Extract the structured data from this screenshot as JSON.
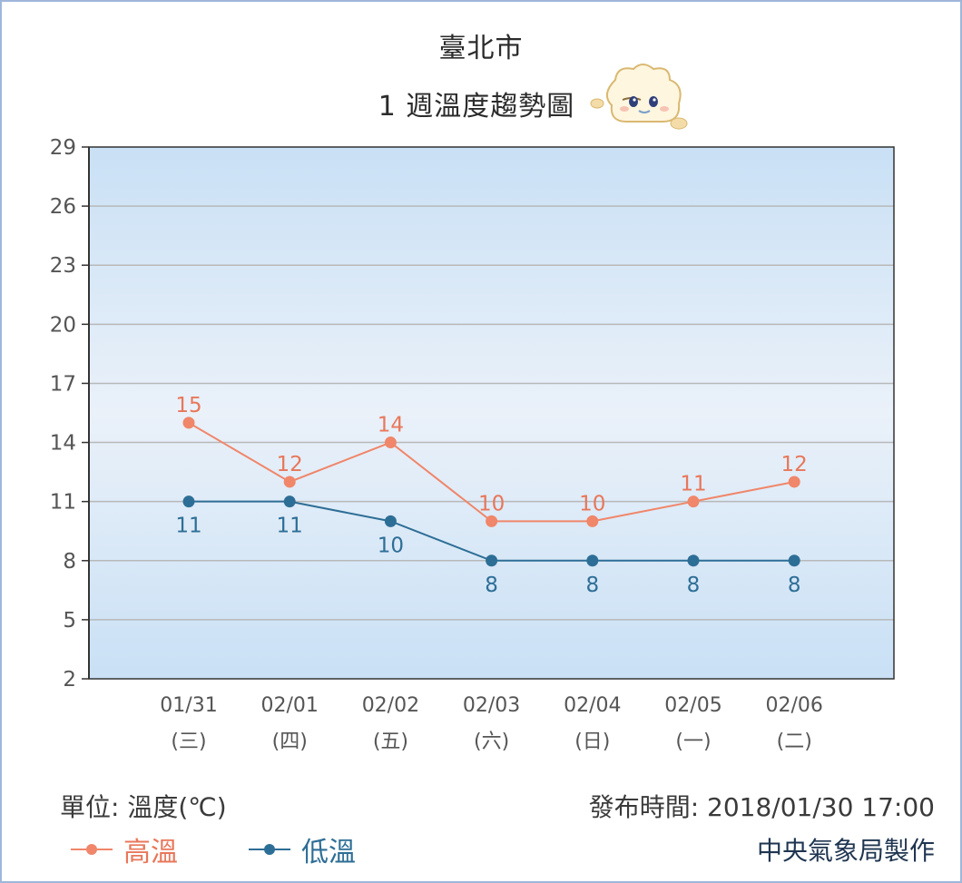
{
  "title": "臺北市",
  "subtitle": "1 週溫度趨勢圖",
  "mascot_icon": "cloud-mascot-icon",
  "unit_text": "單位: 溫度(℃)",
  "issued_text": "發布時間: 2018/01/30 17:00",
  "maker_text": "中央氣象局製作",
  "colors": {
    "high": "#f0866a",
    "low": "#2d6e96",
    "plot_top": "#c9e0f5",
    "plot_mid": "#eaf1f9",
    "grid": "#b8b8b8"
  },
  "chart_data": {
    "type": "line",
    "x": [
      "01/31",
      "02/01",
      "02/02",
      "02/03",
      "02/04",
      "02/05",
      "02/06"
    ],
    "x_sub": [
      "(三)",
      "(四)",
      "(五)",
      "(六)",
      "(日)",
      "(一)",
      "(二)"
    ],
    "series": [
      {
        "name": "高溫",
        "values": [
          15,
          12,
          14,
          10,
          10,
          11,
          12
        ]
      },
      {
        "name": "低溫",
        "values": [
          11,
          11,
          10,
          8,
          8,
          8,
          8
        ]
      }
    ],
    "ylim": [
      2,
      29
    ],
    "yticks": [
      2,
      5,
      8,
      11,
      14,
      17,
      20,
      23,
      26,
      29
    ],
    "grid": true,
    "legend": "bottom-left"
  }
}
